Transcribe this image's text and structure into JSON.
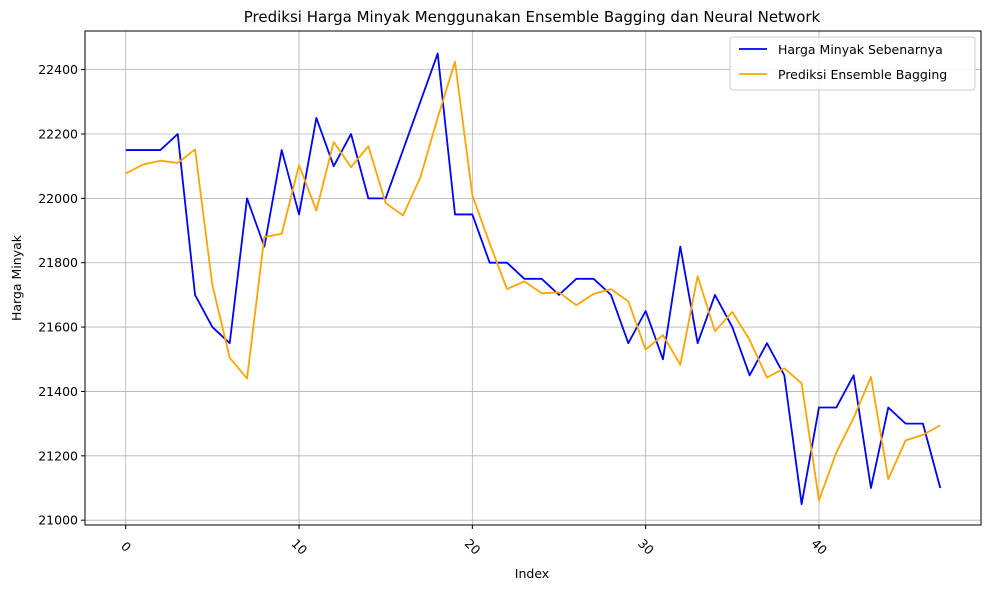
{
  "chart_data": {
    "type": "line",
    "title": "Prediksi Harga Minyak Menggunakan Ensemble Bagging dan Neural Network",
    "xlabel": "Index",
    "ylabel": "Harga Minyak",
    "xlim": [
      -2.35,
      49.35
    ],
    "ylim": [
      20985,
      22520
    ],
    "xticks": [
      0,
      10,
      20,
      30,
      40
    ],
    "yticks": [
      21000,
      21200,
      21400,
      21600,
      21800,
      22000,
      22200,
      22400
    ],
    "grid": true,
    "legend_position": "upper right",
    "x": [
      0,
      1,
      2,
      3,
      4,
      5,
      6,
      7,
      8,
      9,
      10,
      11,
      12,
      13,
      14,
      15,
      16,
      17,
      18,
      19,
      20,
      21,
      22,
      23,
      24,
      25,
      26,
      27,
      28,
      29,
      30,
      31,
      32,
      33,
      34,
      35,
      36,
      37,
      38,
      39,
      40,
      41,
      42,
      43,
      44,
      45,
      46,
      47
    ],
    "series": [
      {
        "name": "Harga Minyak Sebenarnya",
        "color": "#0000ff",
        "values": [
          22150,
          22150,
          22150,
          22200,
          21700,
          21600,
          21550,
          22000,
          21850,
          22150,
          21950,
          22250,
          22100,
          22200,
          22000,
          22000,
          22150,
          22300,
          22450,
          21950,
          21950,
          21800,
          21800,
          21750,
          21750,
          21700,
          21750,
          21750,
          21700,
          21550,
          21650,
          21500,
          21850,
          21550,
          21700,
          21600,
          21450,
          21550,
          21450,
          21050,
          21350,
          21350,
          21450,
          21100,
          21350,
          21300,
          21300,
          21100
        ]
      },
      {
        "name": "Prediksi Ensemble Bagging",
        "color": "#ffa500",
        "values": [
          22077,
          22105,
          22117,
          22110,
          22152,
          21730,
          21505,
          21440,
          21880,
          21890,
          22103,
          21962,
          22175,
          22097,
          22162,
          21985,
          21947,
          22065,
          22250,
          22425,
          22010,
          21860,
          21718,
          21742,
          21705,
          21708,
          21668,
          21703,
          21718,
          21680,
          21530,
          21575,
          21483,
          21758,
          21587,
          21647,
          21560,
          21443,
          21472,
          21425,
          21062,
          21210,
          21318,
          21445,
          21128,
          21248,
          21265,
          21295
        ]
      }
    ]
  }
}
